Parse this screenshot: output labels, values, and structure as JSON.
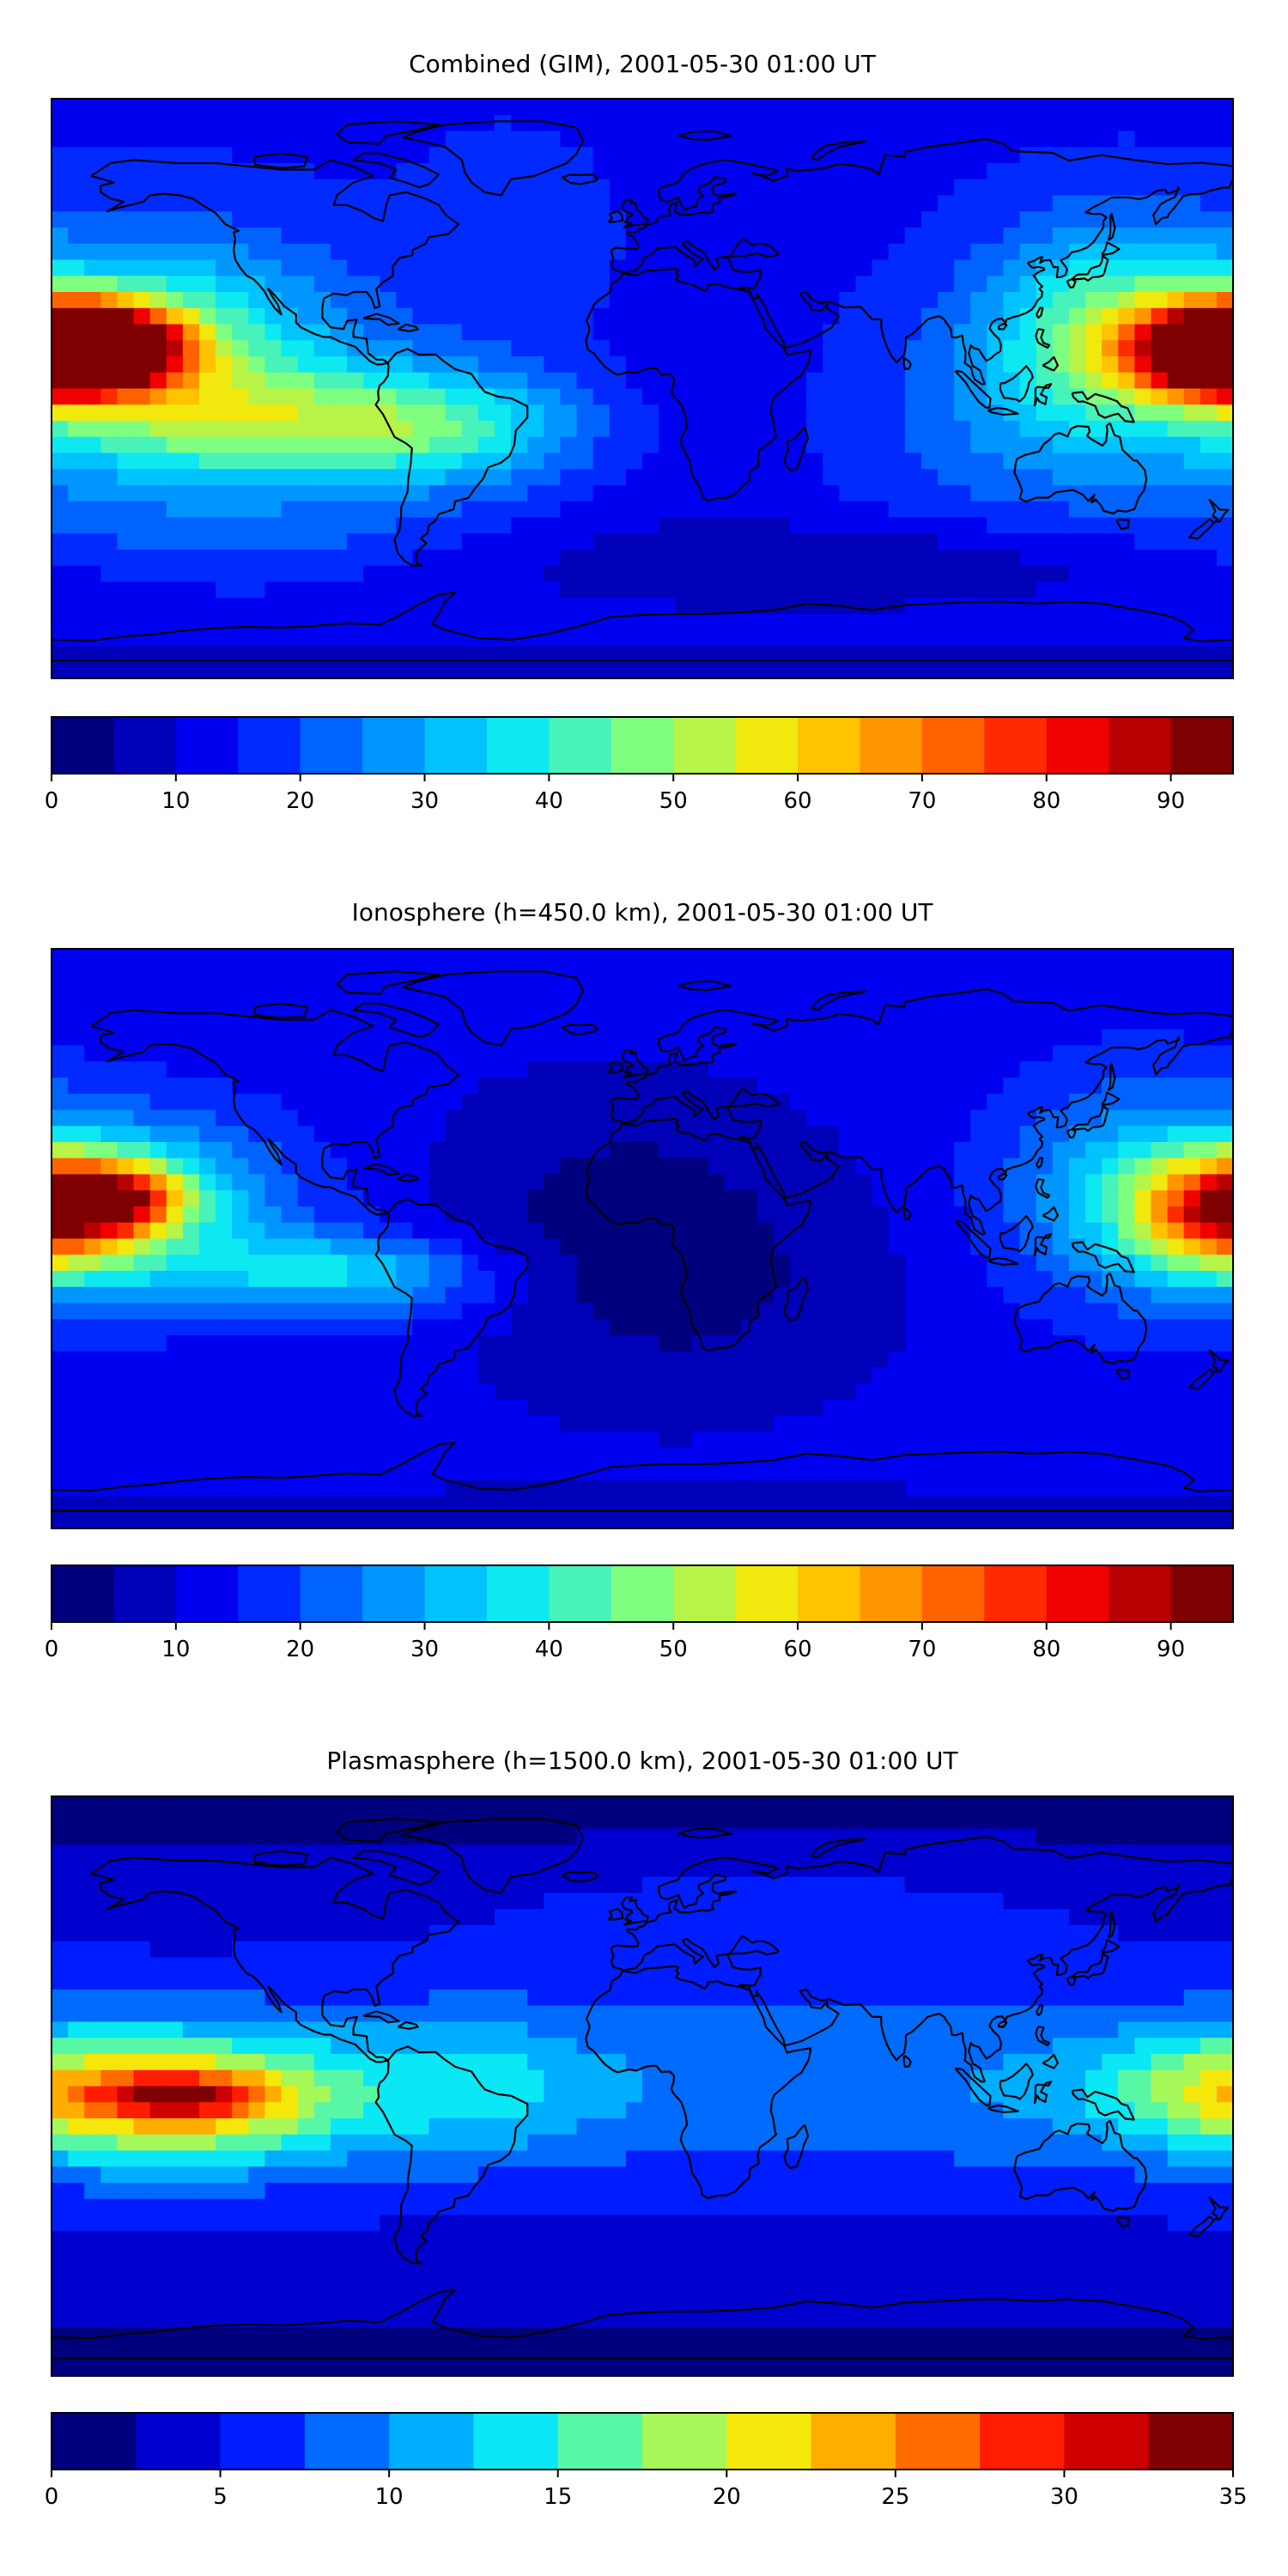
{
  "figure": {
    "background": "#ffffff",
    "colormap": "jet",
    "colormap_stops": [
      "#00007f",
      "#0000ff",
      "#007fff",
      "#00e5ff",
      "#7fff7f",
      "#ffe500",
      "#ff7f00",
      "#ff0000",
      "#7f0000"
    ],
    "coastline_color": "#000000"
  },
  "chart_data": [
    {
      "type": "heatmap",
      "title": "Combined (GIM), 2001-05-30 01:00 UT",
      "map_projection": "plate-carree",
      "colorbar": {
        "orientation": "horizontal",
        "levels_start": 0,
        "levels_step": 5,
        "levels_count": 19,
        "range": [
          0,
          95
        ],
        "ticks": [
          0,
          10,
          20,
          30,
          40,
          50,
          60,
          70,
          80,
          90
        ],
        "tick_labels": [
          "0",
          "10",
          "20",
          "30",
          "40",
          "50",
          "60",
          "70",
          "80",
          "90"
        ]
      },
      "field": {
        "base": 14,
        "lat_gradient": 0,
        "features": [
          {
            "lon": -150,
            "lat": 10,
            "slon": 40,
            "slat": 24,
            "amp": 35
          },
          {
            "lon": -160,
            "lat": 13,
            "slon": 16,
            "slat": 8,
            "amp": 45
          },
          {
            "lon": -95,
            "lat": -12,
            "slon": 45,
            "slat": 12,
            "amp": 25
          },
          {
            "lon": -60,
            "lat": -12,
            "slon": 30,
            "slat": 14,
            "amp": 12
          },
          {
            "lon": -40,
            "lat": 38,
            "slon": 25,
            "slat": 30,
            "amp": 3
          },
          {
            "lon": 140,
            "lat": 20,
            "slon": 25,
            "slat": 22,
            "amp": 25
          },
          {
            "lon": 180,
            "lat": 12,
            "slon": 18,
            "slat": 9,
            "amp": 60
          },
          {
            "lon": -180,
            "lat": 12,
            "slon": 18,
            "slat": 9,
            "amp": 60
          },
          {
            "lon": 120,
            "lat": -10,
            "slon": 40,
            "slat": 25,
            "amp": 10
          },
          {
            "lon": 15,
            "lat": -10,
            "slon": 30,
            "slat": 25,
            "amp": -3
          },
          {
            "lon": 60,
            "lat": -55,
            "slon": 80,
            "slat": 10,
            "amp": -9
          },
          {
            "lon": 0,
            "lat": -90,
            "slon": 400,
            "slat": 10,
            "amp": -6
          },
          {
            "lon": -120,
            "lat": -45,
            "slon": 50,
            "slat": 10,
            "amp": 7
          }
        ]
      }
    },
    {
      "type": "heatmap",
      "title": "Ionosphere  (h=450.0 km), 2001-05-30 01:00 UT",
      "map_projection": "plate-carree",
      "colorbar": {
        "orientation": "horizontal",
        "levels_start": 0,
        "levels_step": 5,
        "levels_count": 19,
        "range": [
          0,
          95
        ],
        "ticks": [
          0,
          10,
          20,
          30,
          40,
          50,
          60,
          70,
          80,
          90
        ],
        "tick_labels": [
          "0",
          "10",
          "20",
          "30",
          "40",
          "50",
          "60",
          "70",
          "80",
          "90"
        ]
      },
      "field": {
        "base": 12,
        "lat_gradient": 0,
        "features": [
          {
            "lon": -155,
            "lat": 10,
            "slon": 35,
            "slat": 20,
            "amp": 25
          },
          {
            "lon": -162,
            "lat": 13,
            "slon": 15,
            "slat": 7,
            "amp": 40
          },
          {
            "lon": -100,
            "lat": -10,
            "slon": 30,
            "slat": 8,
            "amp": 18
          },
          {
            "lon": -70,
            "lat": -15,
            "slon": 25,
            "slat": 10,
            "amp": 8
          },
          {
            "lon": 10,
            "lat": -15,
            "slon": 45,
            "slat": 28,
            "amp": -8
          },
          {
            "lon": -10,
            "lat": 20,
            "slon": 40,
            "slat": 25,
            "amp": -5
          },
          {
            "lon": 150,
            "lat": 15,
            "slon": 30,
            "slat": 25,
            "amp": 18
          },
          {
            "lon": 180,
            "lat": 8,
            "slon": 20,
            "slat": 12,
            "amp": 25
          },
          {
            "lon": -180,
            "lat": 8,
            "slon": 20,
            "slat": 12,
            "amp": 25
          },
          {
            "lon": 0,
            "lat": -90,
            "slon": 400,
            "slat": 10,
            "amp": -4
          }
        ]
      }
    },
    {
      "type": "heatmap",
      "title": "Plasmasphere (h=1500.0 km), 2001-05-30 01:00 UT",
      "map_projection": "plate-carree",
      "colorbar": {
        "orientation": "horizontal",
        "levels_start": 0,
        "levels_step": 2.5,
        "levels_count": 14,
        "range": [
          0,
          35
        ],
        "ticks": [
          0,
          5,
          10,
          15,
          20,
          25,
          30,
          35
        ],
        "tick_labels": [
          "0",
          "5",
          "10",
          "15",
          "20",
          "25",
          "30",
          "35"
        ]
      },
      "field": {
        "base": 4,
        "lat_gradient": 0,
        "features": [
          {
            "lon": -180,
            "lat": 0,
            "slon": 400,
            "slat": 22,
            "amp": 6
          },
          {
            "lon": -140,
            "lat": -5,
            "slon": 35,
            "slat": 14,
            "amp": 14
          },
          {
            "lon": -140,
            "lat": -3,
            "slon": 20,
            "slat": 5,
            "amp": 10
          },
          {
            "lon": -50,
            "lat": 0,
            "slon": 25,
            "slat": 15,
            "amp": 4
          },
          {
            "lon": 170,
            "lat": 0,
            "slon": 25,
            "slat": 12,
            "amp": 6
          },
          {
            "lon": 40,
            "lat": 50,
            "slon": 60,
            "slat": 15,
            "amp": 2
          },
          {
            "lon": 0,
            "lat": -90,
            "slon": 400,
            "slat": 15,
            "amp": -3
          },
          {
            "lon": 0,
            "lat": 90,
            "slon": 400,
            "slat": 12,
            "amp": -3
          }
        ]
      }
    }
  ]
}
